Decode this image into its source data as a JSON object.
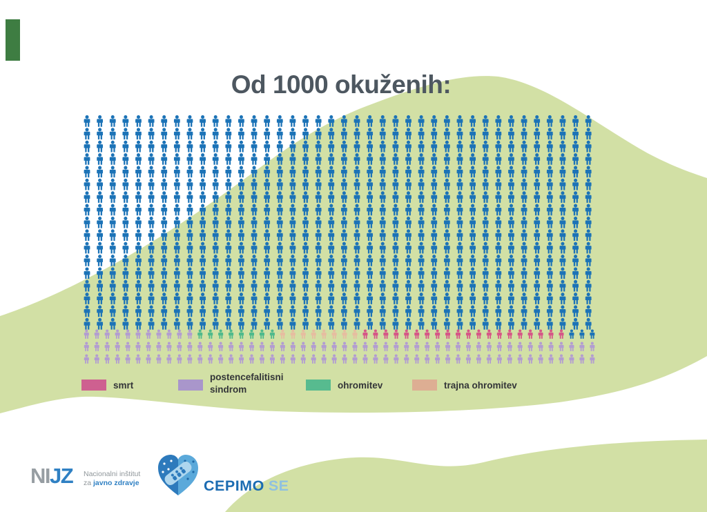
{
  "title": "Od 1000 okuženih:",
  "chart_data": {
    "type": "pictogram",
    "title": "Od 1000 okuženih:",
    "total_implied": 1000,
    "icon_grid": {
      "main_rows": 17,
      "main_columns": 40,
      "main_color_key": "blue",
      "outcome_columns": 50,
      "outcome_rows": [
        {
          "segments": [
            [
              "postencefalitisni sindrom",
              11
            ],
            [
              "ohromitev",
              8
            ],
            [
              "trajna ohromitev",
              8
            ],
            [
              "smrt",
              20
            ],
            [
              "blue",
              3
            ]
          ]
        },
        {
          "segments": [
            [
              "postencefalitisni sindrom",
              50
            ]
          ]
        },
        {
          "segments": [
            [
              "postencefalitisni sindrom",
              50
            ]
          ]
        }
      ]
    },
    "category_counts": {
      "smrt": 20,
      "postencefalitisni sindrom": 111,
      "ohromitev": 8,
      "trajna ohromitev": 8,
      "no_outcome_blue": 683
    },
    "legend_position": "bottom"
  },
  "colors": {
    "background_green": "#d2e0a5",
    "icon_blue": "#1c73b7",
    "smrt": "#d65787",
    "postencefalitisni sindrom": "#b29dd1",
    "ohromitev": "#4fba8c",
    "trajna ohromitev": "#e6bda0",
    "title_text": "#4d5760",
    "corner_green": "#3e7d42"
  },
  "legend": {
    "items": [
      {
        "label": "smrt",
        "color": "#ce6090"
      },
      {
        "label": "postencefalitisni sindrom",
        "line1": "postencefalitisni",
        "line2": "sindrom",
        "color": "#a996cb"
      },
      {
        "label": "ohromitev",
        "color": "#57bb8f"
      },
      {
        "label": "trajna ohromitev",
        "color": "#ddae93"
      }
    ]
  },
  "footer": {
    "nijz_abbr_gray": "NI",
    "nijz_abbr_blue": "JZ",
    "nijz_line1": "Nacionalni inštitut",
    "nijz_line2_prefix": "za ",
    "nijz_line2_bold": "javno zdravje",
    "campaign_name": "CEPIMO",
    "campaign_suffix": "SE"
  }
}
